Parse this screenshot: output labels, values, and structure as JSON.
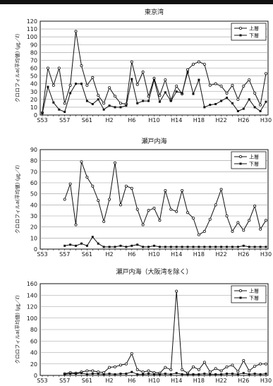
{
  "chart_data": [
    {
      "type": "line",
      "title": "東京湾",
      "ylabel": "クロロフィルa(平均値) (㎍／ℓ)",
      "ylim": [
        0,
        120
      ],
      "yticks": [
        0,
        10,
        20,
        30,
        40,
        50,
        60,
        70,
        80,
        90,
        100,
        110,
        120
      ],
      "x": [
        "S53",
        "S54",
        "S55",
        "S56",
        "S57",
        "S58",
        "S59",
        "S60",
        "S61",
        "S62",
        "S63",
        "H1",
        "H2",
        "H3",
        "H4",
        "H5",
        "H6",
        "H7",
        "H8",
        "H9",
        "H10",
        "H11",
        "H12",
        "H13",
        "H14",
        "H15",
        "H16",
        "H17",
        "H18",
        "H19",
        "H20",
        "H21",
        "H22",
        "H23",
        "H24",
        "H25",
        "H26",
        "H27",
        "H28",
        "H29",
        "H30"
      ],
      "xticklabels": [
        "S53",
        "S57",
        "S61",
        "H2",
        "H6",
        "H10",
        "H14",
        "H18",
        "H22",
        "H26",
        "H30"
      ],
      "legend": "top-right",
      "grid": true,
      "series": [
        {
          "name": "上層",
          "marker": "open",
          "values": [
            3,
            60,
            38,
            60,
            15,
            38,
            107,
            63,
            38,
            48,
            25,
            15,
            35,
            24,
            15,
            14,
            68,
            39,
            55,
            24,
            47,
            25,
            45,
            19,
            37,
            27,
            58,
            65,
            68,
            65,
            38,
            40,
            37,
            28,
            38,
            20,
            37,
            45,
            28,
            13,
            53
          ]
        },
        {
          "name": "下層",
          "marker": "filled",
          "values": [
            2,
            36,
            16,
            7,
            4,
            28,
            40,
            40,
            18,
            14,
            20,
            7,
            12,
            10,
            10,
            12,
            46,
            15,
            18,
            18,
            45,
            17,
            29,
            18,
            30,
            28,
            55,
            27,
            45,
            10,
            13,
            14,
            18,
            22,
            15,
            5,
            8,
            20,
            10,
            5,
            17
          ]
        }
      ]
    },
    {
      "type": "line",
      "title": "瀬戸内海",
      "ylabel": "クロロフィルa(平均値) (㎍／ℓ)",
      "ylim": [
        0,
        90
      ],
      "yticks": [
        0,
        10,
        20,
        30,
        40,
        50,
        60,
        70,
        80,
        90
      ],
      "x": [
        "S53",
        "S54",
        "S55",
        "S56",
        "S57",
        "S58",
        "S59",
        "S60",
        "S61",
        "S62",
        "S63",
        "H1",
        "H2",
        "H3",
        "H4",
        "H5",
        "H6",
        "H7",
        "H8",
        "H9",
        "H10",
        "H11",
        "H12",
        "H13",
        "H14",
        "H15",
        "H16",
        "H17",
        "H18",
        "H19",
        "H20",
        "H21",
        "H22",
        "H23",
        "H24",
        "H25",
        "H26",
        "H27",
        "H28",
        "H29",
        "H30"
      ],
      "xticklabels": [
        "S53",
        "S57",
        "S61",
        "H2",
        "H6",
        "H10",
        "H14",
        "H18",
        "H22",
        "H26",
        "H30"
      ],
      "legend": "top-right",
      "grid": true,
      "series": [
        {
          "name": "上層",
          "marker": "open",
          "values": [
            null,
            null,
            null,
            null,
            45,
            59,
            22,
            79,
            65,
            57,
            44,
            25,
            45,
            78,
            40,
            57,
            55,
            36,
            22,
            35,
            37,
            26,
            53,
            36,
            34,
            53,
            33,
            28,
            13,
            16,
            27,
            40,
            54,
            30,
            16,
            24,
            17,
            26,
            39,
            18,
            26
          ]
        },
        {
          "name": "下層",
          "marker": "filled",
          "values": [
            null,
            null,
            null,
            null,
            3,
            4,
            3,
            5,
            3,
            11,
            5,
            2,
            2,
            2,
            3,
            2,
            3,
            4,
            2,
            2,
            3,
            2,
            2,
            2,
            2,
            2,
            2,
            2,
            2,
            2,
            2,
            2,
            2,
            2,
            2,
            2,
            3,
            2,
            2,
            2,
            2
          ]
        }
      ]
    },
    {
      "type": "line",
      "title": "瀬戸内海（大阪湾を除く）",
      "ylabel": "クロロフィルa(平均値) (㎍／ℓ)",
      "ylim": [
        0,
        160
      ],
      "yticks": [
        0,
        20,
        40,
        60,
        80,
        100,
        120,
        140,
        160
      ],
      "x": [
        "S53",
        "S54",
        "S55",
        "S56",
        "S57",
        "S58",
        "S59",
        "S60",
        "S61",
        "S62",
        "S63",
        "H1",
        "H2",
        "H3",
        "H4",
        "H5",
        "H6",
        "H7",
        "H8",
        "H9",
        "H10",
        "H11",
        "H12",
        "H13",
        "H14",
        "H15",
        "H16",
        "H17",
        "H18",
        "H19",
        "H20",
        "H21",
        "H22",
        "H23",
        "H24",
        "H25",
        "H26",
        "H27",
        "H28",
        "H29",
        "H30"
      ],
      "xticklabels": [
        "S53",
        "S57",
        "S61",
        "H2",
        "H6",
        "H10",
        "H14",
        "H18",
        "H22",
        "H26",
        "H30"
      ],
      "legend": "top-right",
      "grid": true,
      "series": [
        {
          "name": "上層",
          "marker": "open",
          "values": [
            null,
            null,
            null,
            null,
            3,
            5,
            4,
            6,
            8,
            8,
            6,
            5,
            14,
            15,
            18,
            20,
            38,
            10,
            6,
            8,
            5,
            4,
            14,
            10,
            147,
            10,
            4,
            15,
            10,
            23,
            6,
            12,
            8,
            15,
            18,
            7,
            26,
            8,
            16,
            20,
            20
          ]
        },
        {
          "name": "下層",
          "marker": "filled",
          "values": [
            null,
            null,
            null,
            null,
            2,
            3,
            3,
            4,
            2,
            3,
            3,
            2,
            3,
            2,
            3,
            3,
            6,
            2,
            2,
            3,
            2,
            2,
            3,
            2,
            4,
            2,
            2,
            2,
            2,
            3,
            2,
            2,
            2,
            3,
            3,
            2,
            4,
            2,
            3,
            2,
            3
          ]
        }
      ]
    }
  ]
}
